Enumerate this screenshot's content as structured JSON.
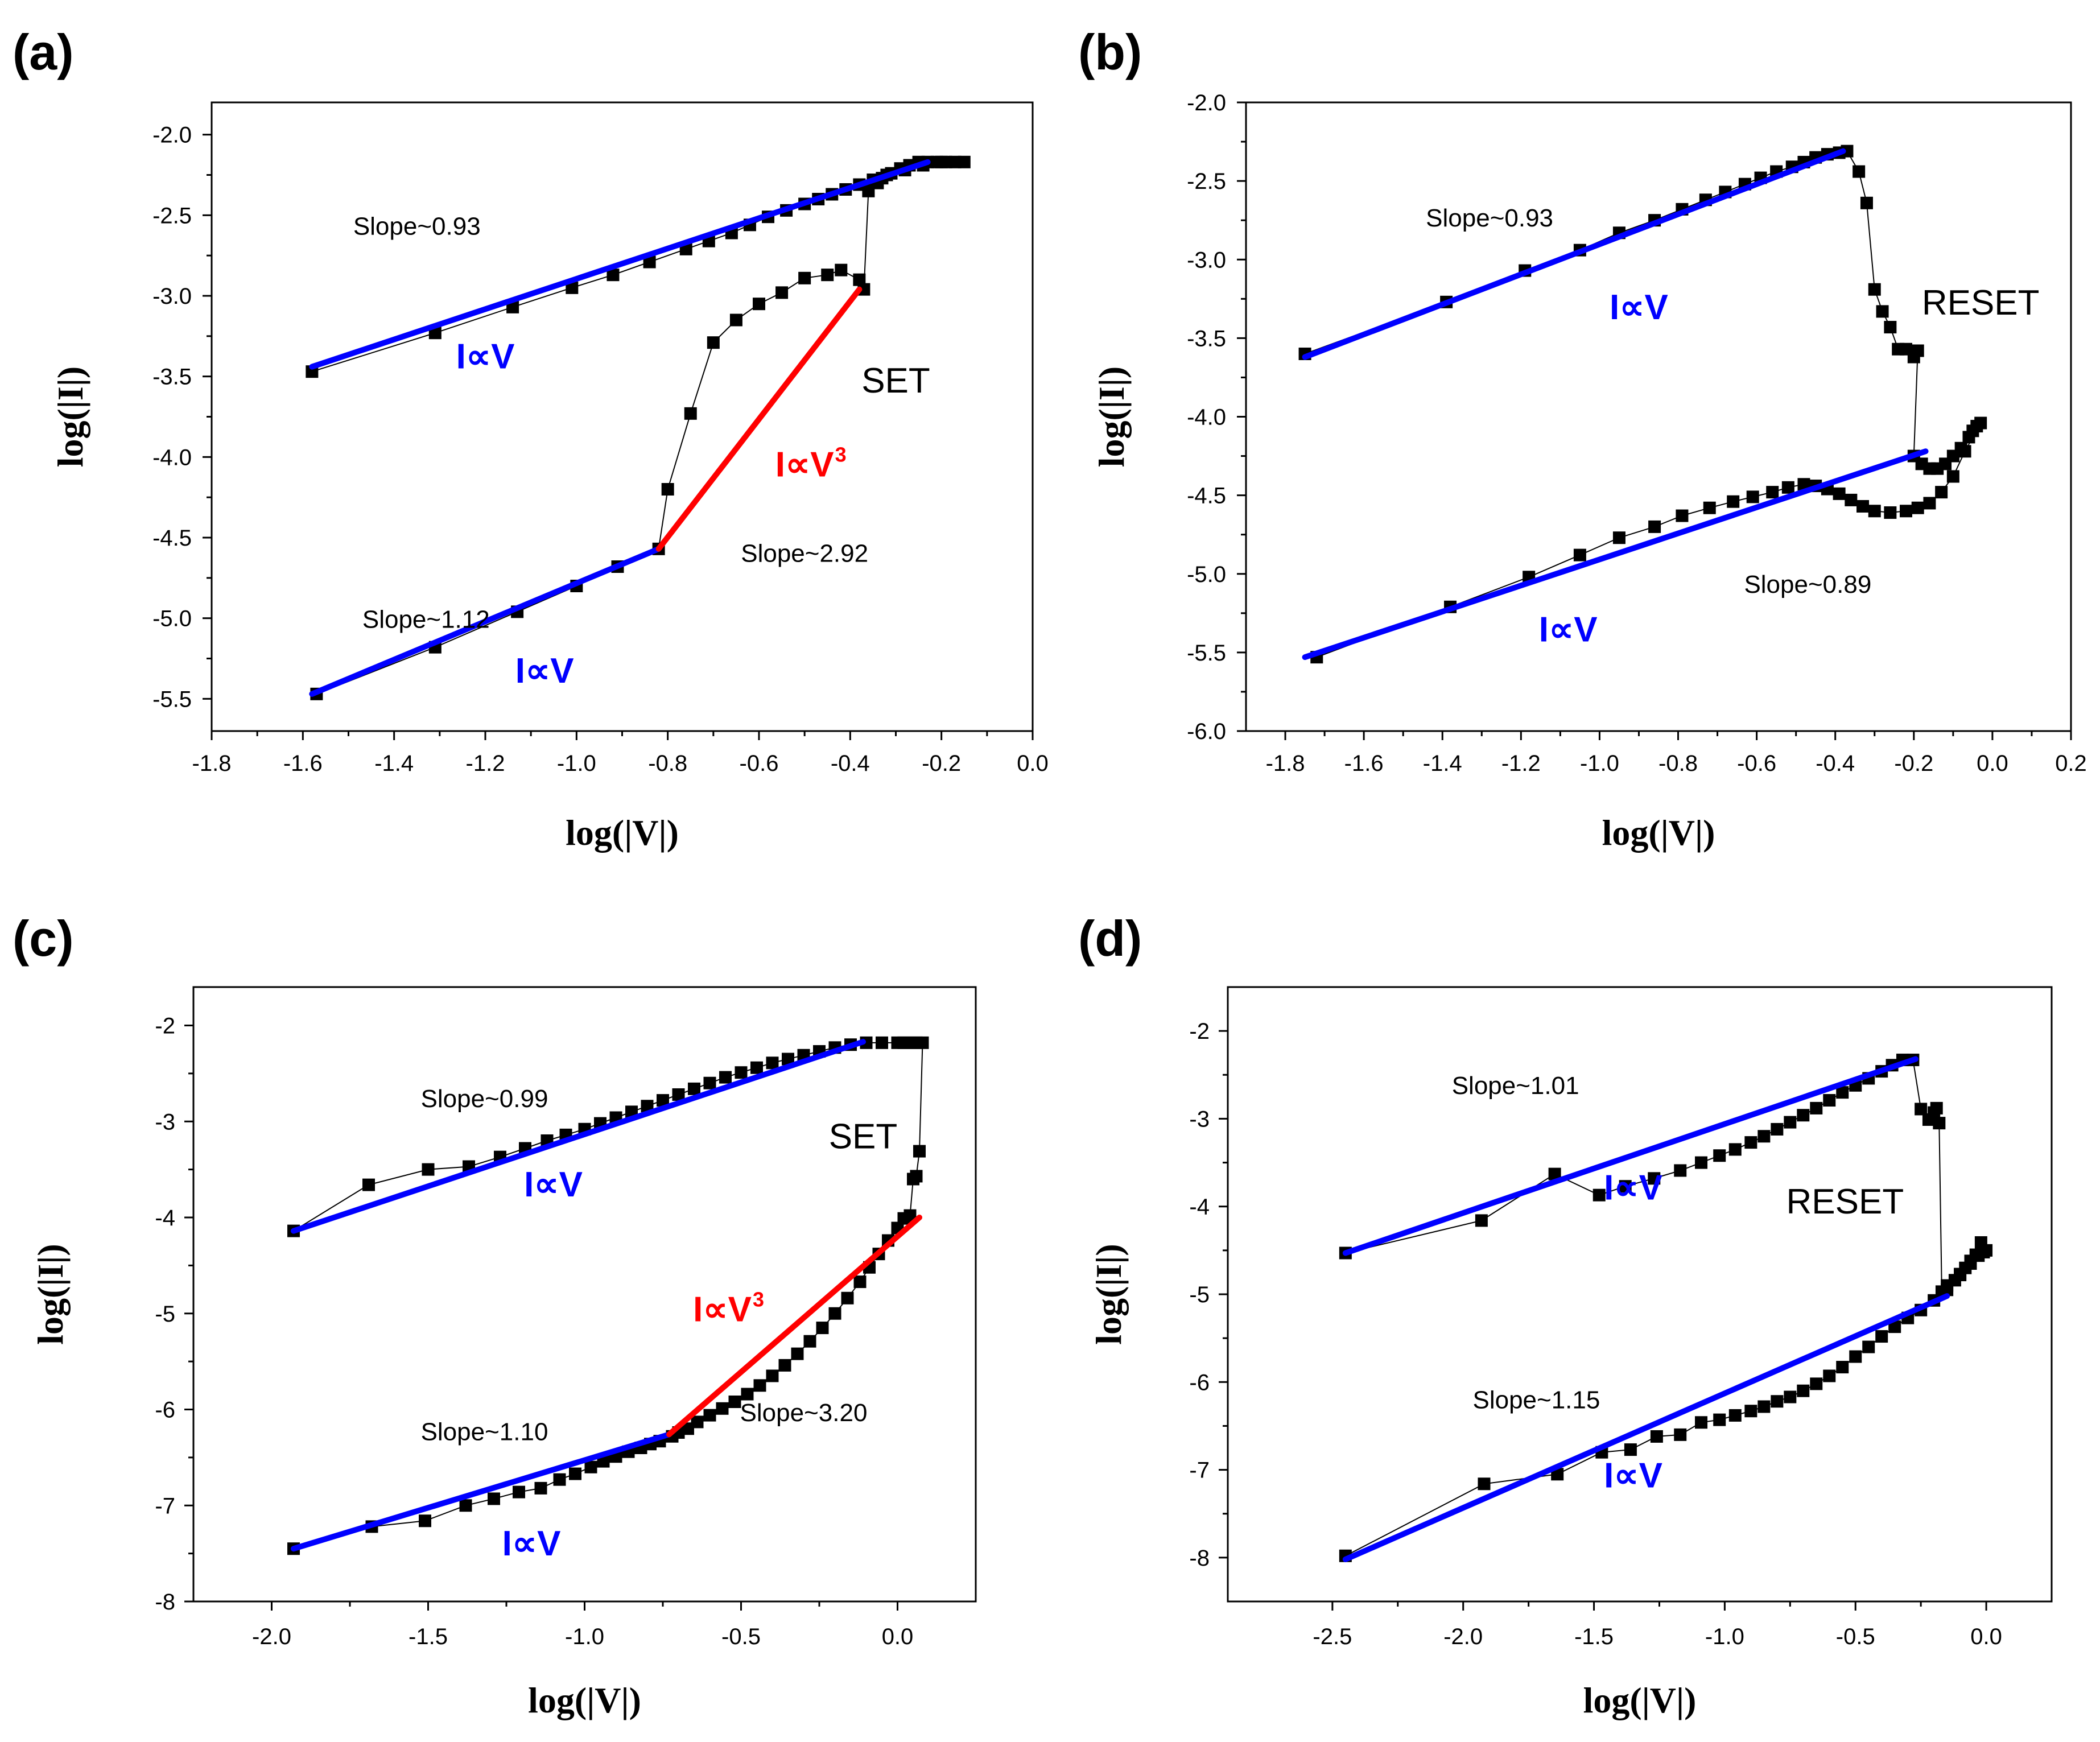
{
  "chart_data": [
    {
      "panel": "(a)",
      "type": "scatter",
      "xlabel": "log(|V|)",
      "ylabel": "log(|I|)",
      "xlim": [
        -1.8,
        0.0
      ],
      "ylim": [
        -5.7,
        -1.8
      ],
      "xticks": [
        -1.8,
        -1.6,
        -1.4,
        -1.2,
        -1.0,
        -0.8,
        -0.6,
        -0.4,
        -0.2,
        0.0
      ],
      "xtick_labels": [
        "-1.8",
        "-1.6",
        "-1.4",
        "-1.2",
        "-1.0",
        "-0.8",
        "-0.6",
        "-0.4",
        "-0.2",
        "0.0"
      ],
      "yticks": [
        -5.5,
        -5.0,
        -4.5,
        -4.0,
        -3.5,
        -3.0,
        -2.5,
        -2.0
      ],
      "ytick_labels": [
        "-5.5",
        "-5.0",
        "-4.5",
        "-4.0",
        "-3.5",
        "-3.0",
        "-2.5",
        "-2.0"
      ],
      "series": [
        {
          "name": "measured",
          "color": "#000000",
          "marker": "square",
          "x": [
            -1.57,
            -1.31,
            -1.13,
            -1.0,
            -0.91,
            -0.82,
            -0.8,
            -0.75,
            -0.7,
            -0.65,
            -0.6,
            -0.55,
            -0.5,
            -0.45,
            -0.42,
            -0.38,
            -0.37,
            -0.36,
            -0.34,
            -0.33,
            -0.31,
            -0.29,
            -0.27,
            -0.25,
            -0.23,
            -0.21,
            -0.19,
            -0.17,
            -0.15,
            -0.2,
            -0.24,
            -0.28,
            -0.32,
            -0.35,
            -0.38,
            -0.41,
            -0.44,
            -0.47,
            -0.5,
            -0.54,
            -0.58,
            -0.62,
            -0.66,
            -0.71,
            -0.76,
            -0.84,
            -0.92,
            -1.01,
            -1.14,
            -1.31,
            -1.58
          ],
          "y": [
            -5.47,
            -5.18,
            -4.96,
            -4.8,
            -4.68,
            -4.57,
            -4.2,
            -3.73,
            -3.29,
            -3.15,
            -3.05,
            -2.98,
            -2.89,
            -2.87,
            -2.84,
            -2.9,
            -2.96,
            -2.35,
            -2.3,
            -2.27,
            -2.24,
            -2.21,
            -2.19,
            -2.17,
            -2.17,
            -2.17,
            -2.17,
            -2.17,
            -2.17,
            -2.17,
            -2.19,
            -2.22,
            -2.25,
            -2.28,
            -2.31,
            -2.34,
            -2.37,
            -2.4,
            -2.43,
            -2.47,
            -2.51,
            -2.56,
            -2.61,
            -2.66,
            -2.71,
            -2.79,
            -2.87,
            -2.95,
            -3.07,
            -3.23,
            -3.47
          ]
        },
        {
          "name": "fit-ohmic-upper",
          "color": "#0000ff",
          "line": true,
          "x": [
            -1.58,
            -0.23
          ],
          "y": [
            -3.44,
            -2.17
          ]
        },
        {
          "name": "fit-ohmic-lower",
          "color": "#0000ff",
          "line": true,
          "x": [
            -1.58,
            -0.82
          ],
          "y": [
            -5.47,
            -4.57
          ]
        },
        {
          "name": "fit-child",
          "color": "#ff0000",
          "line": true,
          "x": [
            -0.82,
            -0.38
          ],
          "y": [
            -4.57,
            -2.96
          ]
        }
      ],
      "annotations": [
        {
          "text": "Slope~0.93",
          "style": "slope",
          "at": [
            -1.35,
            -2.62
          ]
        },
        {
          "text": "I∝V",
          "style": "law-blue",
          "at": [
            -1.2,
            -3.45
          ]
        },
        {
          "text": "SET",
          "style": "big",
          "at": [
            -0.3,
            -3.6
          ]
        },
        {
          "text": "I∝V",
          "sup": "3",
          "style": "law-red",
          "at": [
            -0.5,
            -4.12
          ]
        },
        {
          "text": "Slope~2.92",
          "style": "slope",
          "at": [
            -0.5,
            -4.65
          ]
        },
        {
          "text": "Slope~1.12",
          "style": "slope",
          "at": [
            -1.33,
            -5.06
          ]
        },
        {
          "text": "I∝V",
          "style": "law-blue",
          "at": [
            -1.07,
            -5.4
          ]
        }
      ]
    },
    {
      "panel": "(b)",
      "type": "scatter",
      "xlabel": "log(|V|)",
      "ylabel": "log(|I|)",
      "xlim": [
        -1.9,
        0.2
      ],
      "ylim": [
        -6.0,
        -2.0
      ],
      "xticks": [
        -1.8,
        -1.6,
        -1.4,
        -1.2,
        -1.0,
        -0.8,
        -0.6,
        -0.4,
        -0.2,
        0.0,
        0.2
      ],
      "xtick_labels": [
        "-1.8",
        "-1.6",
        "-1.4",
        "-1.2",
        "-1.0",
        "-0.8",
        "-0.6",
        "-0.4",
        "-0.2",
        "0.0",
        "0.2"
      ],
      "yticks": [
        -6.0,
        -5.5,
        -5.0,
        -4.5,
        -4.0,
        -3.5,
        -3.0,
        -2.5,
        -2.0
      ],
      "ytick_labels": [
        "-6.0",
        "-5.5",
        "-5.0",
        "-4.5",
        "-4.0",
        "-3.5",
        "-3.0",
        "-2.5",
        "-2.0"
      ],
      "series": [
        {
          "name": "measured",
          "color": "#000000",
          "marker": "square",
          "x": [
            -1.75,
            -1.39,
            -1.19,
            -1.05,
            -0.95,
            -0.86,
            -0.79,
            -0.73,
            -0.68,
            -0.63,
            -0.59,
            -0.55,
            -0.51,
            -0.48,
            -0.45,
            -0.42,
            -0.39,
            -0.37,
            -0.34,
            -0.32,
            -0.3,
            -0.28,
            -0.26,
            -0.24,
            -0.22,
            -0.2,
            -0.19,
            -0.2,
            -0.18,
            -0.16,
            -0.14,
            -0.12,
            -0.1,
            -0.08,
            -0.06,
            -0.05,
            -0.04,
            -0.03,
            -0.07,
            -0.1,
            -0.13,
            -0.16,
            -0.19,
            -0.22,
            -0.26,
            -0.3,
            -0.33,
            -0.36,
            -0.39,
            -0.42,
            -0.45,
            -0.48,
            -0.52,
            -0.56,
            -0.61,
            -0.66,
            -0.72,
            -0.79,
            -0.86,
            -0.95,
            -1.05,
            -1.18,
            -1.38,
            -1.72
          ],
          "y": [
            -3.6,
            -3.27,
            -3.07,
            -2.94,
            -2.83,
            -2.75,
            -2.68,
            -2.62,
            -2.57,
            -2.52,
            -2.48,
            -2.44,
            -2.41,
            -2.38,
            -2.35,
            -2.33,
            -2.32,
            -2.31,
            -2.44,
            -2.64,
            -3.19,
            -3.33,
            -3.43,
            -3.57,
            -3.57,
            -3.62,
            -3.58,
            -4.25,
            -4.3,
            -4.33,
            -4.33,
            -4.3,
            -4.25,
            -4.2,
            -4.13,
            -4.09,
            -4.06,
            -4.04,
            -4.22,
            -4.38,
            -4.48,
            -4.55,
            -4.58,
            -4.6,
            -4.61,
            -4.6,
            -4.57,
            -4.53,
            -4.49,
            -4.46,
            -4.44,
            -4.43,
            -4.45,
            -4.48,
            -4.51,
            -4.54,
            -4.58,
            -4.63,
            -4.7,
            -4.77,
            -4.88,
            -5.02,
            -5.21,
            -5.53
          ]
        },
        {
          "name": "fit-ohmic-upper",
          "color": "#0000ff",
          "line": true,
          "x": [
            -1.75,
            -0.38
          ],
          "y": [
            -3.62,
            -2.31
          ]
        },
        {
          "name": "fit-ohmic-lower",
          "color": "#0000ff",
          "line": true,
          "x": [
            -1.75,
            -0.17
          ],
          "y": [
            -5.53,
            -4.22
          ]
        }
      ],
      "annotations": [
        {
          "text": "Slope~0.93",
          "style": "slope",
          "at": [
            -1.28,
            -2.79
          ]
        },
        {
          "text": "I∝V",
          "style": "law-blue",
          "at": [
            -0.9,
            -3.38
          ]
        },
        {
          "text": "RESET",
          "style": "big",
          "at": [
            -0.03,
            -3.35
          ]
        },
        {
          "text": "Slope~0.89",
          "style": "slope",
          "at": [
            -0.47,
            -5.12
          ]
        },
        {
          "text": "I∝V",
          "style": "law-blue",
          "at": [
            -1.08,
            -5.43
          ]
        }
      ]
    },
    {
      "panel": "(c)",
      "type": "scatter",
      "xlabel": "log(|V|)",
      "ylabel": "log(|I|)",
      "xlim": [
        -2.25,
        0.25
      ],
      "ylim": [
        -8.0,
        -1.6
      ],
      "xticks": [
        -2.0,
        -1.5,
        -1.0,
        -0.5,
        0.0
      ],
      "xtick_labels": [
        "-2.0",
        "-1.5",
        "-1.0",
        "-0.5",
        "0.0"
      ],
      "yticks": [
        -8,
        -7,
        -6,
        -5,
        -4,
        -3,
        -2
      ],
      "ytick_labels": [
        "-8",
        "-7",
        "-6",
        "-5",
        "-4",
        "-3",
        "-2"
      ],
      "series": [
        {
          "name": "measured",
          "color": "#000000",
          "marker": "square",
          "x": [
            -1.93,
            -1.68,
            -1.51,
            -1.38,
            -1.29,
            -1.21,
            -1.14,
            -1.08,
            -1.03,
            -0.98,
            -0.94,
            -0.9,
            -0.86,
            -0.82,
            -0.79,
            -0.76,
            -0.72,
            -0.7,
            -0.67,
            -0.64,
            -0.6,
            -0.56,
            -0.52,
            -0.48,
            -0.44,
            -0.4,
            -0.36,
            -0.32,
            -0.28,
            -0.24,
            -0.2,
            -0.16,
            -0.12,
            -0.09,
            -0.06,
            -0.03,
            0.0,
            0.02,
            0.04,
            0.05,
            0.06,
            0.07,
            0.08,
            0.06,
            0.04,
            0.02,
            0.0,
            -0.05,
            -0.1,
            -0.15,
            -0.2,
            -0.25,
            -0.3,
            -0.35,
            -0.4,
            -0.45,
            -0.5,
            -0.55,
            -0.6,
            -0.65,
            -0.7,
            -0.75,
            -0.8,
            -0.85,
            -0.9,
            -0.95,
            -1.0,
            -1.06,
            -1.12,
            -1.19,
            -1.27,
            -1.37,
            -1.5,
            -1.69,
            -1.93
          ],
          "y": [
            -7.45,
            -7.22,
            -7.16,
            -7.0,
            -6.93,
            -6.86,
            -6.82,
            -6.73,
            -6.67,
            -6.6,
            -6.54,
            -6.49,
            -6.44,
            -6.4,
            -6.36,
            -6.33,
            -6.28,
            -6.24,
            -6.2,
            -6.13,
            -6.06,
            -5.99,
            -5.92,
            -5.84,
            -5.75,
            -5.65,
            -5.54,
            -5.42,
            -5.29,
            -5.15,
            -5.0,
            -4.84,
            -4.67,
            -4.52,
            -4.38,
            -4.24,
            -4.11,
            -4.01,
            -3.98,
            -3.6,
            -3.57,
            -3.31,
            -2.18,
            -2.18,
            -2.18,
            -2.18,
            -2.18,
            -2.18,
            -2.18,
            -2.2,
            -2.23,
            -2.27,
            -2.31,
            -2.35,
            -2.39,
            -2.44,
            -2.49,
            -2.54,
            -2.6,
            -2.66,
            -2.72,
            -2.78,
            -2.84,
            -2.9,
            -2.96,
            -3.02,
            -3.08,
            -3.14,
            -3.2,
            -3.28,
            -3.37,
            -3.47,
            -3.5,
            -3.66,
            -4.14
          ]
        },
        {
          "name": "fit-ohmic-upper",
          "color": "#0000ff",
          "line": true,
          "x": [
            -1.93,
            -0.11
          ],
          "y": [
            -4.14,
            -2.17
          ]
        },
        {
          "name": "fit-ohmic-lower",
          "color": "#0000ff",
          "line": true,
          "x": [
            -1.93,
            -0.73
          ],
          "y": [
            -7.45,
            -6.26
          ]
        },
        {
          "name": "fit-child",
          "color": "#ff0000",
          "line": true,
          "x": [
            -0.73,
            0.07
          ],
          "y": [
            -6.26,
            -4.0
          ]
        }
      ],
      "annotations": [
        {
          "text": "Slope~0.99",
          "style": "slope",
          "at": [
            -1.32,
            -2.85
          ]
        },
        {
          "text": "SET",
          "style": "big",
          "at": [
            -0.11,
            -3.28
          ]
        },
        {
          "text": "I∝V",
          "style": "law-blue",
          "at": [
            -1.1,
            -3.78
          ]
        },
        {
          "text": "I∝V",
          "sup": "3",
          "style": "law-red",
          "at": [
            -0.56,
            -5.08
          ]
        },
        {
          "text": "Slope~1.10",
          "style": "slope",
          "at": [
            -1.32,
            -6.32
          ]
        },
        {
          "text": "Slope~3.20",
          "style": "slope",
          "at": [
            -0.3,
            -6.12
          ]
        },
        {
          "text": "I∝V",
          "style": "law-blue",
          "at": [
            -1.17,
            -7.52
          ]
        }
      ]
    },
    {
      "panel": "(d)",
      "type": "scatter",
      "xlabel": "log(|V|)",
      "ylabel": "log(|I|)",
      "xlim": [
        -2.9,
        0.25
      ],
      "ylim": [
        -8.5,
        -1.5
      ],
      "xticks": [
        -2.5,
        -2.0,
        -1.5,
        -1.0,
        -0.5,
        0.0
      ],
      "xtick_labels": [
        "-2.5",
        "-2.0",
        "-1.5",
        "-1.0",
        "-0.5",
        "0.0"
      ],
      "yticks": [
        -8,
        -7,
        -6,
        -5,
        -4,
        -3,
        -2
      ],
      "ytick_labels": [
        "-8",
        "-7",
        "-6",
        "-5",
        "-4",
        "-3",
        "-2"
      ],
      "series": [
        {
          "name": "measured",
          "color": "#000000",
          "marker": "square",
          "x": [
            -2.45,
            -1.92,
            -1.64,
            -1.47,
            -1.36,
            -1.26,
            -1.17,
            -1.09,
            -1.02,
            -0.96,
            -0.9,
            -0.85,
            -0.8,
            -0.75,
            -0.7,
            -0.65,
            -0.6,
            -0.55,
            -0.5,
            -0.45,
            -0.4,
            -0.35,
            -0.3,
            -0.25,
            -0.2,
            -0.15,
            -0.1,
            -0.06,
            -0.03,
            -0.01,
            0.0,
            -0.02,
            -0.04,
            -0.06,
            -0.08,
            -0.1,
            -0.12,
            -0.15,
            -0.17,
            -0.18,
            -0.19,
            -0.2,
            -0.22,
            -0.25,
            -0.28,
            -0.32,
            -0.36,
            -0.4,
            -0.45,
            -0.5,
            -0.55,
            -0.6,
            -0.65,
            -0.7,
            -0.75,
            -0.8,
            -0.85,
            -0.9,
            -0.96,
            -1.02,
            -1.09,
            -1.17,
            -1.27,
            -1.38,
            -1.48,
            -1.65,
            -1.93,
            -2.45
          ],
          "y": [
            -7.98,
            -7.16,
            -7.05,
            -6.8,
            -6.77,
            -6.62,
            -6.6,
            -6.46,
            -6.43,
            -6.38,
            -6.33,
            -6.28,
            -6.22,
            -6.17,
            -6.1,
            -6.02,
            -5.93,
            -5.83,
            -5.71,
            -5.6,
            -5.48,
            -5.37,
            -5.27,
            -5.18,
            -5.07,
            -4.95,
            -4.78,
            -4.65,
            -4.56,
            -4.52,
            -4.5,
            -4.41,
            -4.55,
            -4.62,
            -4.7,
            -4.77,
            -4.84,
            -4.9,
            -4.97,
            -3.05,
            -2.88,
            -2.93,
            -3.01,
            -2.89,
            -2.33,
            -2.33,
            -2.39,
            -2.46,
            -2.54,
            -2.62,
            -2.7,
            -2.79,
            -2.88,
            -2.96,
            -3.04,
            -3.12,
            -3.2,
            -3.27,
            -3.35,
            -3.42,
            -3.5,
            -3.59,
            -3.68,
            -3.77,
            -3.87,
            -3.63,
            -4.16,
            -4.53
          ]
        },
        {
          "name": "fit-ohmic-upper",
          "color": "#0000ff",
          "line": true,
          "x": [
            -2.45,
            -0.27
          ],
          "y": [
            -4.53,
            -2.32
          ]
        },
        {
          "name": "fit-ohmic-lower",
          "color": "#0000ff",
          "line": true,
          "x": [
            -2.45,
            -0.15
          ],
          "y": [
            -8.02,
            -5.02
          ]
        }
      ],
      "annotations": [
        {
          "text": "Slope~1.01",
          "style": "slope",
          "at": [
            -1.8,
            -2.72
          ]
        },
        {
          "text": "I∝V",
          "style": "law-blue",
          "at": [
            -1.35,
            -3.92
          ]
        },
        {
          "text": "RESET",
          "style": "big",
          "at": [
            -0.54,
            -4.08
          ]
        },
        {
          "text": "Slope~1.15",
          "style": "slope",
          "at": [
            -1.72,
            -6.3
          ]
        },
        {
          "text": "I∝V",
          "style": "law-blue",
          "at": [
            -1.35,
            -7.2
          ]
        }
      ]
    }
  ],
  "colors": {
    "data": "#000000",
    "fit_ohmic": "#0000ff",
    "fit_child": "#ff0000",
    "law_blue_text": "#0000ff",
    "law_red_text": "#ff0000"
  }
}
